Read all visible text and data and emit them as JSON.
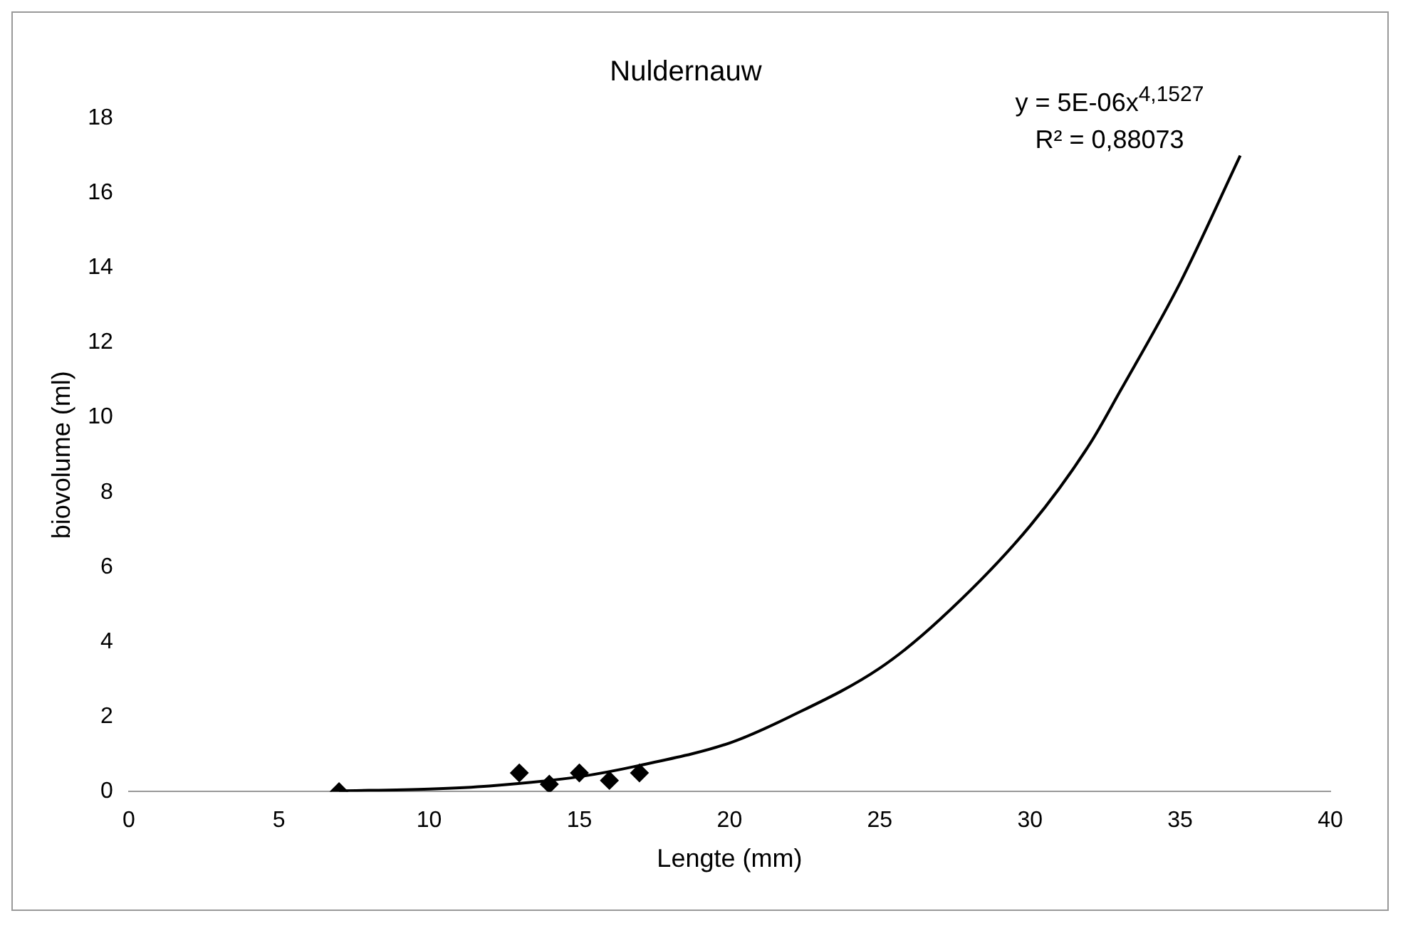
{
  "chart_data": {
    "type": "scatter",
    "title": "Nuldernauw",
    "xlabel": "Lengte (mm)",
    "ylabel": "biovolume (ml)",
    "xlim": [
      0,
      40
    ],
    "xticks": [
      0,
      5,
      10,
      15,
      20,
      25,
      30,
      35,
      40
    ],
    "ylim": [
      0,
      18
    ],
    "yticks": [
      0,
      2,
      4,
      6,
      8,
      10,
      12,
      14,
      16,
      18
    ],
    "grid": false,
    "legend": false,
    "marker": "diamond",
    "series": [
      {
        "type": "scatter",
        "color": "#000000",
        "x": [
          7,
          13,
          14,
          15,
          16,
          17
        ],
        "values": [
          0,
          0.5,
          0.2,
          0.5,
          0.3,
          0.5
        ]
      },
      {
        "type": "line",
        "marker": "none",
        "color": "#000000",
        "x": [
          7,
          10,
          12,
          15,
          17,
          20,
          22,
          25,
          27,
          30,
          32,
          33,
          35,
          37
        ],
        "values": [
          0.02,
          0.07,
          0.15,
          0.4,
          0.7,
          1.3,
          2.0,
          3.3,
          4.6,
          7.1,
          9.3,
          10.7,
          13.6,
          17.0
        ]
      }
    ],
    "annotations": [
      "y = 5E-06x$^{4,1527}$",
      "R² = 0,88073"
    ]
  }
}
